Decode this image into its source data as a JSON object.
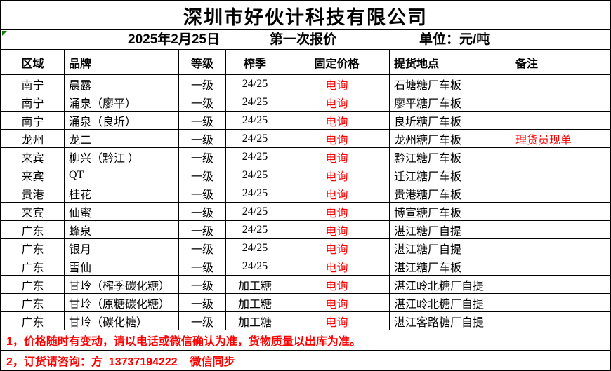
{
  "company": "深圳市好伙计科技有限公司",
  "meta": {
    "date": "2025年2月25日",
    "quote_round": "第一次报价",
    "unit_label": "单位：元/吨"
  },
  "columns": [
    "区域",
    "品牌",
    "等级",
    "榨季",
    "固定价格",
    "提货地点",
    "备注"
  ],
  "rows": [
    {
      "region": "南宁",
      "brand": "晨露",
      "grade": "一级",
      "season": "24/25",
      "price": "电询",
      "pickup": "石塘糖厂车板",
      "note": ""
    },
    {
      "region": "南宁",
      "brand": "涌泉（廖平）",
      "grade": "一级",
      "season": "24/25",
      "price": "电询",
      "pickup": "廖平糖厂车板",
      "note": ""
    },
    {
      "region": "南宁",
      "brand": "涌泉（良圻）",
      "grade": "一级",
      "season": "24/25",
      "price": "电询",
      "pickup": "良圻糖厂车板",
      "note": ""
    },
    {
      "region": "龙州",
      "brand": "龙二",
      "grade": "一级",
      "season": "24/25",
      "price": "电询",
      "pickup": "龙州糖厂车板",
      "note": "理货员现单"
    },
    {
      "region": "来宾",
      "brand": "柳兴（黔江 ）",
      "grade": "一级",
      "season": "24/25",
      "price": "电询",
      "pickup": "黔江糖厂车板",
      "note": ""
    },
    {
      "region": "来宾",
      "brand": "QT",
      "grade": "一级",
      "season": "24/25",
      "price": "电询",
      "pickup": "迁江糖厂车板",
      "note": ""
    },
    {
      "region": "贵港",
      "brand": "桂花",
      "grade": "一级",
      "season": "24/25",
      "price": "电询",
      "pickup": "贵港糖厂车板",
      "note": ""
    },
    {
      "region": "来宾",
      "brand": "仙蜜",
      "grade": "一级",
      "season": "24/25",
      "price": "电询",
      "pickup": "博宣糖厂车板",
      "note": ""
    },
    {
      "region": "广东",
      "brand": "蜂泉",
      "grade": "一级",
      "season": "24/25",
      "price": "电询",
      "pickup": "湛江糖厂自提",
      "note": ""
    },
    {
      "region": "广东",
      "brand": "银月",
      "grade": "一级",
      "season": "24/25",
      "price": "电询",
      "pickup": "湛江糖厂自提",
      "note": ""
    },
    {
      "region": "广东",
      "brand": "雪仙",
      "grade": "一级",
      "season": "24/25",
      "price": "电询",
      "pickup": "湛江糖厂车板",
      "note": ""
    },
    {
      "region": "广东",
      "brand": "甘岭（榨季碳化糖）",
      "grade": "一级",
      "season": "加工糖",
      "price": "电询",
      "pickup": "湛江岭北糖厂自提",
      "note": ""
    },
    {
      "region": "广东",
      "brand": "甘岭（原糖碳化糖）",
      "grade": "一级",
      "season": "加工糖",
      "price": "电询",
      "pickup": "湛江岭北糖厂自提",
      "note": ""
    },
    {
      "region": "广东",
      "brand": "甘岭（碳化糖）",
      "grade": "一级",
      "season": "加工糖",
      "price": "电询",
      "pickup": "湛江客路糖厂自提",
      "note": ""
    }
  ],
  "footnotes": [
    "1，价格随时有变动，请以电话或微信确认为准，货物质量以出库为准。",
    "2，订货请咨询：方  13737194222    微信同步"
  ],
  "colors": {
    "accent_red": "#ff0000",
    "marker_green": "#0f7b0f"
  }
}
